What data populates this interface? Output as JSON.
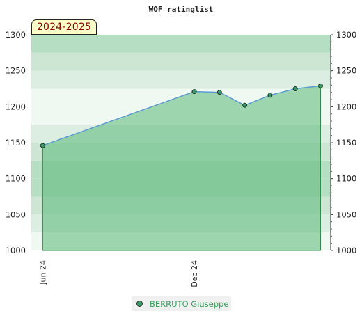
{
  "chart_data": {
    "type": "area",
    "title": "WOF ratinglist",
    "season_label": "2024-2025",
    "xlabel": "",
    "ylabel": "",
    "ylim": [
      1000,
      1300
    ],
    "y_ticks": [
      1000,
      1050,
      1100,
      1150,
      1200,
      1250,
      1300
    ],
    "x_ticks": [
      {
        "label": "Jun 24",
        "month_index": 0
      },
      {
        "label": "Dec 24",
        "month_index": 6
      }
    ],
    "x_range_months": [
      -0.45,
      11.4
    ],
    "grid": true,
    "legend_position": "bottom",
    "colors": {
      "line": "#5b9bd5",
      "fill": "#5ab878",
      "marker": "#3c9a6a",
      "marker_edge": "#1e3a2a",
      "edge": "#2e8b4a"
    },
    "series": [
      {
        "name": "BERRUTO Giuseppe",
        "points": [
          {
            "month_index": 0,
            "value": 1146
          },
          {
            "month_index": 6,
            "value": 1221
          },
          {
            "month_index": 7,
            "value": 1220
          },
          {
            "month_index": 8,
            "value": 1202
          },
          {
            "month_index": 9,
            "value": 1216
          },
          {
            "month_index": 10,
            "value": 1225
          },
          {
            "month_index": 11,
            "value": 1229
          }
        ]
      }
    ]
  }
}
